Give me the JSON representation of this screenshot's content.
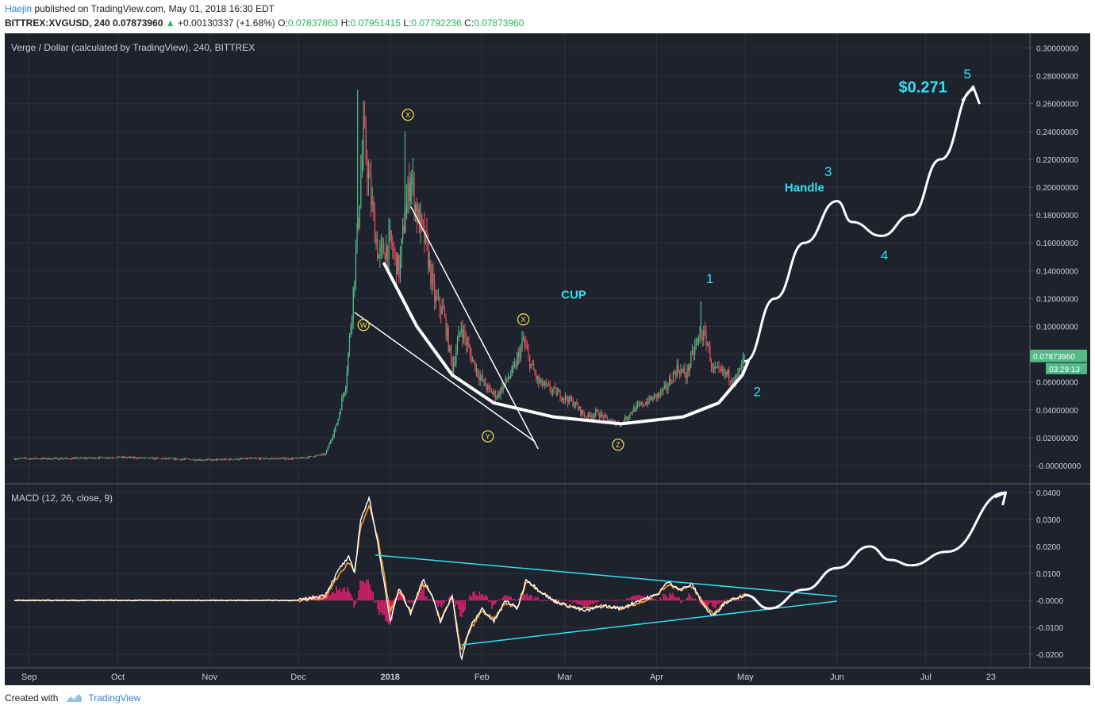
{
  "header": {
    "author": "Haejin",
    "published": "published on TradingView.com, May 01, 2018 16:30 EDT",
    "symbol": "BITTREX:XVGUSD, 240",
    "last": "0.07873960",
    "change": "+0.00130337 (+1.68%)",
    "o_label": "O:",
    "o": "0.07837863",
    "h_label": "H:",
    "h": "0.07951415",
    "l_label": "L:",
    "l": "0.07792236",
    "c_label": "C:",
    "c": "0.07873960"
  },
  "footer": {
    "created_with": "Created with",
    "brand": "TradingView"
  },
  "colors": {
    "background": "#1e222d",
    "grid": "#2c313d",
    "text": "#c9ccd4",
    "up_candle": "#53b987",
    "down_candle": "#eb4d5c",
    "annotation_white": "#ffffff",
    "annotation_cyan": "#2fe0f0",
    "wave_yellow": "#f5e94e",
    "macd_line": "#ffffff",
    "signal_line": "#f4a23a",
    "histogram": "#ff1f7a",
    "price_tag": "#53b987"
  },
  "chart_data": [
    {
      "type": "candlestick",
      "title": "Verge / Dollar (calculated by TradingView), 240, BITTREX",
      "x_ticks": [
        "Sep",
        "Oct",
        "Nov",
        "Dec",
        "2018",
        "Feb",
        "Mar",
        "Apr",
        "May",
        "Jun",
        "Jul",
        "23"
      ],
      "y_ticks": [
        "0.30000000",
        "0.28000000",
        "0.26000000",
        "0.24000000",
        "0.22000000",
        "0.20000000",
        "0.18000000",
        "0.16000000",
        "0.14000000",
        "0.12000000",
        "0.10000000",
        "0.08000000",
        "0.06000000",
        "0.04000000",
        "0.02000000",
        "-0.00000000"
      ],
      "ylim": [
        -0.005,
        0.3
      ],
      "price_label": "0.07873960",
      "countdown_label": "03:29:13",
      "x": [
        "2017-08-27",
        "2017-09-15",
        "2017-10-01",
        "2017-10-15",
        "2017-11-01",
        "2017-11-15",
        "2017-12-01",
        "2017-12-10",
        "2017-12-14",
        "2017-12-17",
        "2017-12-19",
        "2017-12-21",
        "2017-12-23",
        "2017-12-25",
        "2017-12-28",
        "2018-01-01",
        "2018-01-04",
        "2018-01-06",
        "2018-01-08",
        "2018-01-10",
        "2018-01-13",
        "2018-01-16",
        "2018-01-19",
        "2018-01-22",
        "2018-01-25",
        "2018-01-28",
        "2018-01-31",
        "2018-02-03",
        "2018-02-06",
        "2018-02-09",
        "2018-02-12",
        "2018-02-15",
        "2018-02-17",
        "2018-02-20",
        "2018-02-24",
        "2018-02-28",
        "2018-03-04",
        "2018-03-08",
        "2018-03-12",
        "2018-03-16",
        "2018-03-20",
        "2018-03-24",
        "2018-03-28",
        "2018-04-01",
        "2018-04-04",
        "2018-04-08",
        "2018-04-11",
        "2018-04-14",
        "2018-04-16",
        "2018-04-18",
        "2018-04-20",
        "2018-04-24",
        "2018-04-28",
        "2018-05-01"
      ],
      "close": [
        0.005,
        0.005,
        0.006,
        0.005,
        0.004,
        0.005,
        0.005,
        0.008,
        0.03,
        0.06,
        0.11,
        0.17,
        0.24,
        0.2,
        0.15,
        0.16,
        0.14,
        0.18,
        0.21,
        0.18,
        0.16,
        0.12,
        0.11,
        0.07,
        0.1,
        0.08,
        0.065,
        0.055,
        0.05,
        0.06,
        0.07,
        0.09,
        0.075,
        0.06,
        0.055,
        0.05,
        0.045,
        0.035,
        0.038,
        0.032,
        0.03,
        0.04,
        0.045,
        0.05,
        0.055,
        0.07,
        0.065,
        0.085,
        0.095,
        0.09,
        0.068,
        0.066,
        0.062,
        0.0787396
      ],
      "annotations": {
        "cup": "CUP",
        "handle": "Handle",
        "target": "$0.271",
        "wave1": "1",
        "wave2": "2",
        "wave3": "3",
        "wave4": "4",
        "wave5": "5",
        "w": "W",
        "x1": "X",
        "y": "Y",
        "x2": "X",
        "z": "Z"
      },
      "projection_dates": [
        "2018-05-01",
        "2018-05-11",
        "2018-05-21",
        "2018-06-01",
        "2018-06-06",
        "2018-06-16",
        "2018-06-26",
        "2018-07-06",
        "2018-07-17"
      ],
      "projection_prices": [
        0.075,
        0.12,
        0.16,
        0.19,
        0.175,
        0.165,
        0.18,
        0.22,
        0.27
      ]
    },
    {
      "type": "line",
      "title": "MACD (12, 26, close, 9)",
      "y_ticks": [
        "0.0400",
        "0.0300",
        "0.0200",
        "0.0100",
        "-0.0000",
        "-0.0100",
        "-0.0200"
      ],
      "ylim": [
        -0.024,
        0.041
      ],
      "x": [
        "2017-08-27",
        "2017-12-01",
        "2017-12-10",
        "2017-12-15",
        "2017-12-18",
        "2017-12-20",
        "2017-12-22",
        "2017-12-25",
        "2017-12-28",
        "2018-01-01",
        "2018-01-04",
        "2018-01-08",
        "2018-01-12",
        "2018-01-15",
        "2018-01-18",
        "2018-01-22",
        "2018-01-25",
        "2018-01-28",
        "2018-02-01",
        "2018-02-05",
        "2018-02-09",
        "2018-02-13",
        "2018-02-16",
        "2018-02-20",
        "2018-02-25",
        "2018-03-02",
        "2018-03-08",
        "2018-03-14",
        "2018-03-20",
        "2018-03-26",
        "2018-04-01",
        "2018-04-05",
        "2018-04-09",
        "2018-04-13",
        "2018-04-17",
        "2018-04-20",
        "2018-04-24",
        "2018-04-28",
        "2018-05-01"
      ],
      "series": [
        {
          "name": "MACD",
          "values": [
            0.0,
            0.0,
            0.002,
            0.012,
            0.016,
            0.01,
            0.03,
            0.038,
            0.02,
            -0.008,
            0.005,
            -0.005,
            0.008,
            0.002,
            -0.008,
            0.002,
            -0.022,
            -0.01,
            -0.003,
            -0.008,
            0.0,
            -0.003,
            0.008,
            0.004,
            0.0,
            -0.002,
            -0.004,
            -0.002,
            -0.003,
            0.0,
            0.002,
            0.007,
            0.004,
            0.006,
            -0.002,
            -0.006,
            -0.001,
            0.001,
            0.002
          ]
        },
        {
          "name": "Signal",
          "values": [
            0.0,
            0.0,
            0.001,
            0.01,
            0.014,
            0.011,
            0.027,
            0.035,
            0.022,
            -0.004,
            0.003,
            -0.004,
            0.006,
            0.002,
            -0.007,
            0.001,
            -0.019,
            -0.011,
            -0.004,
            -0.007,
            -0.001,
            -0.003,
            0.007,
            0.004,
            0.0,
            -0.002,
            -0.003,
            -0.002,
            -0.003,
            -0.001,
            0.002,
            0.006,
            0.004,
            0.005,
            -0.001,
            -0.005,
            -0.001,
            0.001,
            0.002
          ]
        }
      ],
      "projection_dates": [
        "2018-05-01",
        "2018-05-09",
        "2018-05-21",
        "2018-06-01",
        "2018-06-12",
        "2018-06-19",
        "2018-06-26",
        "2018-07-08",
        "2018-07-28"
      ],
      "projection_values": [
        0.002,
        -0.003,
        0.004,
        0.012,
        0.02,
        0.015,
        0.013,
        0.018,
        0.04
      ]
    }
  ]
}
